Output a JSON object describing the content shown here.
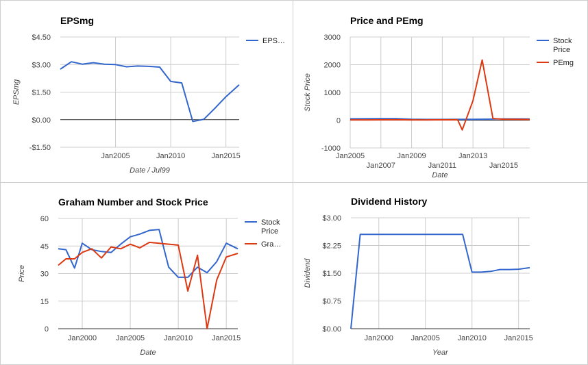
{
  "charts": [
    {
      "type": "line",
      "title": "EPSmg",
      "xlabel": "Date / Jul99",
      "ylabel": "EPSmg",
      "xlim": [
        2000.0,
        2016.2
      ],
      "x_ticks": [
        {
          "v": 2005,
          "label": "Jan2005"
        },
        {
          "v": 2010,
          "label": "Jan2010"
        },
        {
          "v": 2015,
          "label": "Jan2015"
        }
      ],
      "ylim": [
        -1.5,
        4.5
      ],
      "y_ticks": [
        {
          "v": 4.5,
          "label": "$4.50"
        },
        {
          "v": 3.0,
          "label": "$3.00"
        },
        {
          "v": 1.5,
          "label": "$1.50"
        },
        {
          "v": 0.0,
          "label": "$0.00"
        },
        {
          "v": -1.5,
          "label": "-$1.50"
        }
      ],
      "legend_position": "right",
      "series": [
        {
          "name": "EPS…",
          "color": "#3366cc",
          "x": [
            2000.0,
            2001.0,
            2002.0,
            2003.0,
            2004.0,
            2005.0,
            2006.0,
            2007.0,
            2008.0,
            2009.0,
            2010.0,
            2011.0,
            2012.0,
            2013.0,
            2014.0,
            2015.0,
            2016.2
          ],
          "y": [
            2.75,
            3.15,
            3.02,
            3.1,
            3.02,
            3.0,
            2.88,
            2.92,
            2.9,
            2.86,
            2.08,
            2.0,
            -0.1,
            0.02,
            0.62,
            1.25,
            1.9
          ]
        }
      ]
    },
    {
      "type": "line",
      "title": "Price and PEmg",
      "xlabel": "Date",
      "ylabel": "Stock Price",
      "xlim": [
        2005.0,
        2016.7
      ],
      "x_ticks": [
        {
          "v": 2005,
          "label": "Jan2005"
        },
        {
          "v": 2007,
          "label": "Jan2007"
        },
        {
          "v": 2009,
          "label": "Jan2009"
        },
        {
          "v": 2011,
          "label": "Jan2011"
        },
        {
          "v": 2013,
          "label": "Jan2013"
        },
        {
          "v": 2015,
          "label": "Jan2015"
        }
      ],
      "ylim": [
        -1000,
        3000
      ],
      "y_ticks": [
        {
          "v": 3000,
          "label": "3000"
        },
        {
          "v": 2000,
          "label": "2000"
        },
        {
          "v": 1000,
          "label": "1000"
        },
        {
          "v": 0,
          "label": "0"
        },
        {
          "v": -1000,
          "label": "-1000"
        }
      ],
      "legend_position": "right",
      "series": [
        {
          "name": "Stock Price",
          "color": "#3366cc",
          "x": [
            2005.0,
            2006.0,
            2007.0,
            2008.0,
            2009.0,
            2010.0,
            2011.0,
            2012.0,
            2013.0,
            2014.0,
            2015.0,
            2016.7
          ],
          "y": [
            50,
            52,
            54,
            54,
            34,
            28,
            28,
            33,
            30,
            36,
            46,
            44
          ]
        },
        {
          "name": "PEmg",
          "color": "#dc3912",
          "x": [
            2005.0,
            2006.0,
            2007.0,
            2008.0,
            2009.0,
            2010.0,
            2011.0,
            2012.0,
            2012.3,
            2013.0,
            2013.6,
            2014.3,
            2015.0,
            2016.7
          ],
          "y": [
            10,
            10,
            12,
            15,
            10,
            10,
            12,
            15,
            -350,
            700,
            2170,
            60,
            35,
            25
          ]
        }
      ]
    },
    {
      "type": "line",
      "title": "Graham Number and Stock Price",
      "xlabel": "Date",
      "ylabel": "Price",
      "xlim": [
        1997.5,
        2016.2
      ],
      "x_ticks": [
        {
          "v": 2000,
          "label": "Jan2000"
        },
        {
          "v": 2005,
          "label": "Jan2005"
        },
        {
          "v": 2010,
          "label": "Jan2010"
        },
        {
          "v": 2015,
          "label": "Jan2015"
        }
      ],
      "ylim": [
        0,
        60
      ],
      "y_ticks": [
        {
          "v": 60,
          "label": "60"
        },
        {
          "v": 45,
          "label": "45"
        },
        {
          "v": 30,
          "label": "30"
        },
        {
          "v": 15,
          "label": "15"
        },
        {
          "v": 0,
          "label": "0"
        }
      ],
      "legend_position": "right",
      "series": [
        {
          "name": "Stock Price",
          "color": "#3366cc",
          "x": [
            1997.5,
            1998.3,
            1999.2,
            2000.0,
            2001.0,
            2002.0,
            2003.0,
            2004.0,
            2005.0,
            2006.0,
            2007.0,
            2008.0,
            2009.0,
            2010.0,
            2011.0,
            2012.0,
            2013.0,
            2014.0,
            2015.0,
            2016.2
          ],
          "y": [
            43.5,
            43,
            33,
            46.5,
            43,
            42,
            41.5,
            46,
            50,
            51.5,
            53.5,
            54,
            33.5,
            28,
            28,
            33.5,
            30.5,
            36.5,
            46.5,
            43.5
          ]
        },
        {
          "name": "Gra…",
          "color": "#dc3912",
          "x": [
            1997.5,
            1998.3,
            1999.2,
            2000.0,
            2001.0,
            2002.0,
            2003.0,
            2004.0,
            2005.0,
            2006.0,
            2007.0,
            2008.0,
            2009.0,
            2010.0,
            2011.0,
            2012.0,
            2013.0,
            2014.0,
            2015.0,
            2016.2
          ],
          "y": [
            34.5,
            38,
            38,
            41.5,
            43.5,
            38.5,
            44.5,
            43.5,
            46,
            44,
            47,
            46.5,
            46,
            45.5,
            20.5,
            40,
            0,
            26.5,
            39,
            41
          ]
        }
      ]
    },
    {
      "type": "line",
      "title": "Dividend History",
      "xlabel": "Year",
      "ylabel": "Dividend",
      "xlim": [
        1997.0,
        2016.2
      ],
      "x_ticks": [
        {
          "v": 2000,
          "label": "Jan2000"
        },
        {
          "v": 2005,
          "label": "Jan2005"
        },
        {
          "v": 2010,
          "label": "Jan2010"
        },
        {
          "v": 2015,
          "label": "Jan2015"
        }
      ],
      "ylim": [
        0,
        3.0
      ],
      "y_ticks": [
        {
          "v": 3.0,
          "label": "$3.00"
        },
        {
          "v": 2.25,
          "label": "$2.25"
        },
        {
          "v": 1.5,
          "label": "$1.50"
        },
        {
          "v": 0.75,
          "label": "$0.75"
        },
        {
          "v": 0.0,
          "label": "$0.00"
        }
      ],
      "legend_position": "none",
      "series": [
        {
          "name": "",
          "color": "#3366cc",
          "x": [
            1997.0,
            1998.0,
            1999.0,
            2000.0,
            2002.0,
            2004.0,
            2006.0,
            2008.0,
            2009.0,
            2010.0,
            2011.0,
            2012.0,
            2013.0,
            2014.0,
            2015.0,
            2016.2
          ],
          "y": [
            0.0,
            2.55,
            2.55,
            2.55,
            2.55,
            2.55,
            2.55,
            2.55,
            2.55,
            1.53,
            1.53,
            1.55,
            1.6,
            1.6,
            1.61,
            1.65
          ]
        }
      ]
    }
  ]
}
